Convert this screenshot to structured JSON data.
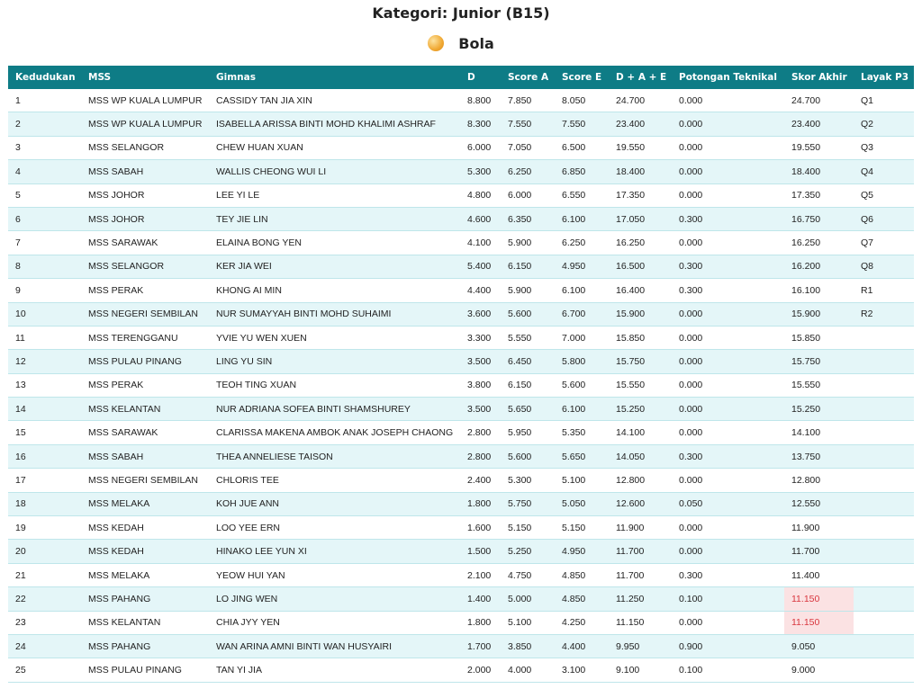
{
  "header": {
    "title": "Kategori: Junior (B15)",
    "subtitle": "Bola"
  },
  "table": {
    "columns": [
      "Kedudukan",
      "MSS",
      "Gimnas",
      "D",
      "Score A",
      "Score E",
      "D + A + E",
      "Potongan Teknikal",
      "Skor Akhir",
      "Layak P3"
    ],
    "rows": [
      [
        "1",
        "MSS WP KUALA LUMPUR",
        "CASSIDY TAN JIA XIN",
        "8.800",
        "7.850",
        "8.050",
        "24.700",
        "0.000",
        "24.700",
        "Q1"
      ],
      [
        "2",
        "MSS WP KUALA LUMPUR",
        "ISABELLA ARISSA BINTI MOHD KHALIMI ASHRAF",
        "8.300",
        "7.550",
        "7.550",
        "23.400",
        "0.000",
        "23.400",
        "Q2"
      ],
      [
        "3",
        "MSS SELANGOR",
        "CHEW HUAN XUAN",
        "6.000",
        "7.050",
        "6.500",
        "19.550",
        "0.000",
        "19.550",
        "Q3"
      ],
      [
        "4",
        "MSS SABAH",
        "WALLIS CHEONG WUI LI",
        "5.300",
        "6.250",
        "6.850",
        "18.400",
        "0.000",
        "18.400",
        "Q4"
      ],
      [
        "5",
        "MSS JOHOR",
        "LEE YI LE",
        "4.800",
        "6.000",
        "6.550",
        "17.350",
        "0.000",
        "17.350",
        "Q5"
      ],
      [
        "6",
        "MSS JOHOR",
        "TEY JIE LIN",
        "4.600",
        "6.350",
        "6.100",
        "17.050",
        "0.300",
        "16.750",
        "Q6"
      ],
      [
        "7",
        "MSS SARAWAK",
        "ELAINA BONG YEN",
        "4.100",
        "5.900",
        "6.250",
        "16.250",
        "0.000",
        "16.250",
        "Q7"
      ],
      [
        "8",
        "MSS SELANGOR",
        "KER JIA WEI",
        "5.400",
        "6.150",
        "4.950",
        "16.500",
        "0.300",
        "16.200",
        "Q8"
      ],
      [
        "9",
        "MSS PERAK",
        "KHONG AI MIN",
        "4.400",
        "5.900",
        "6.100",
        "16.400",
        "0.300",
        "16.100",
        "R1"
      ],
      [
        "10",
        "MSS NEGERI SEMBILAN",
        "NUR SUMAYYAH BINTI MOHD SUHAIMI",
        "3.600",
        "5.600",
        "6.700",
        "15.900",
        "0.000",
        "15.900",
        "R2"
      ],
      [
        "11",
        "MSS TERENGGANU",
        "YVIE YU WEN XUEN",
        "3.300",
        "5.550",
        "7.000",
        "15.850",
        "0.000",
        "15.850"
      ],
      [
        "12",
        "MSS PULAU PINANG",
        "LING YU SIN",
        "3.500",
        "6.450",
        "5.800",
        "15.750",
        "0.000",
        "15.750"
      ],
      [
        "13",
        "MSS PERAK",
        "TEOH TING XUAN",
        "3.800",
        "6.150",
        "5.600",
        "15.550",
        "0.000",
        "15.550"
      ],
      [
        "14",
        "MSS KELANTAN",
        "NUR ADRIANA SOFEA BINTI SHAMSHUREY",
        "3.500",
        "5.650",
        "6.100",
        "15.250",
        "0.000",
        "15.250"
      ],
      [
        "15",
        "MSS SARAWAK",
        "CLARISSA MAKENA AMBOK ANAK JOSEPH CHAONG",
        "2.800",
        "5.950",
        "5.350",
        "14.100",
        "0.000",
        "14.100"
      ],
      [
        "16",
        "MSS SABAH",
        "THEA ANNELIESE TAISON",
        "2.800",
        "5.600",
        "5.650",
        "14.050",
        "0.300",
        "13.750"
      ],
      [
        "17",
        "MSS NEGERI SEMBILAN",
        "CHLORIS TEE",
        "2.400",
        "5.300",
        "5.100",
        "12.800",
        "0.000",
        "12.800"
      ],
      [
        "18",
        "MSS MELAKA",
        "KOH JUE ANN",
        "1.800",
        "5.750",
        "5.050",
        "12.600",
        "0.050",
        "12.550"
      ],
      [
        "19",
        "MSS KEDAH",
        "LOO YEE ERN",
        "1.600",
        "5.150",
        "5.150",
        "11.900",
        "0.000",
        "11.900"
      ],
      [
        "20",
        "MSS KEDAH",
        "HINAKO LEE YUN XI",
        "1.500",
        "5.250",
        "4.950",
        "11.700",
        "0.000",
        "11.700"
      ],
      [
        "21",
        "MSS MELAKA",
        "YEOW HUI YAN",
        "2.100",
        "4.750",
        "4.850",
        "11.700",
        "0.300",
        "11.400"
      ],
      [
        "22",
        "MSS PAHANG",
        "LO JING WEN",
        "1.400",
        "5.000",
        "4.850",
        "11.250",
        "0.100",
        "11.150"
      ],
      [
        "23",
        "MSS KELANTAN",
        "CHIA JYY YEN",
        "1.800",
        "5.100",
        "4.250",
        "11.150",
        "0.000",
        "11.150"
      ],
      [
        "24",
        "MSS PAHANG",
        "WAN ARINA AMNI BINTI WAN HUSYAIRI",
        "1.700",
        "3.850",
        "4.400",
        "9.950",
        "0.900",
        "9.050"
      ],
      [
        "25",
        "MSS PULAU PINANG",
        "TAN YI JIA",
        "2.000",
        "4.000",
        "3.100",
        "9.100",
        "0.100",
        "9.000"
      ]
    ]
  }
}
